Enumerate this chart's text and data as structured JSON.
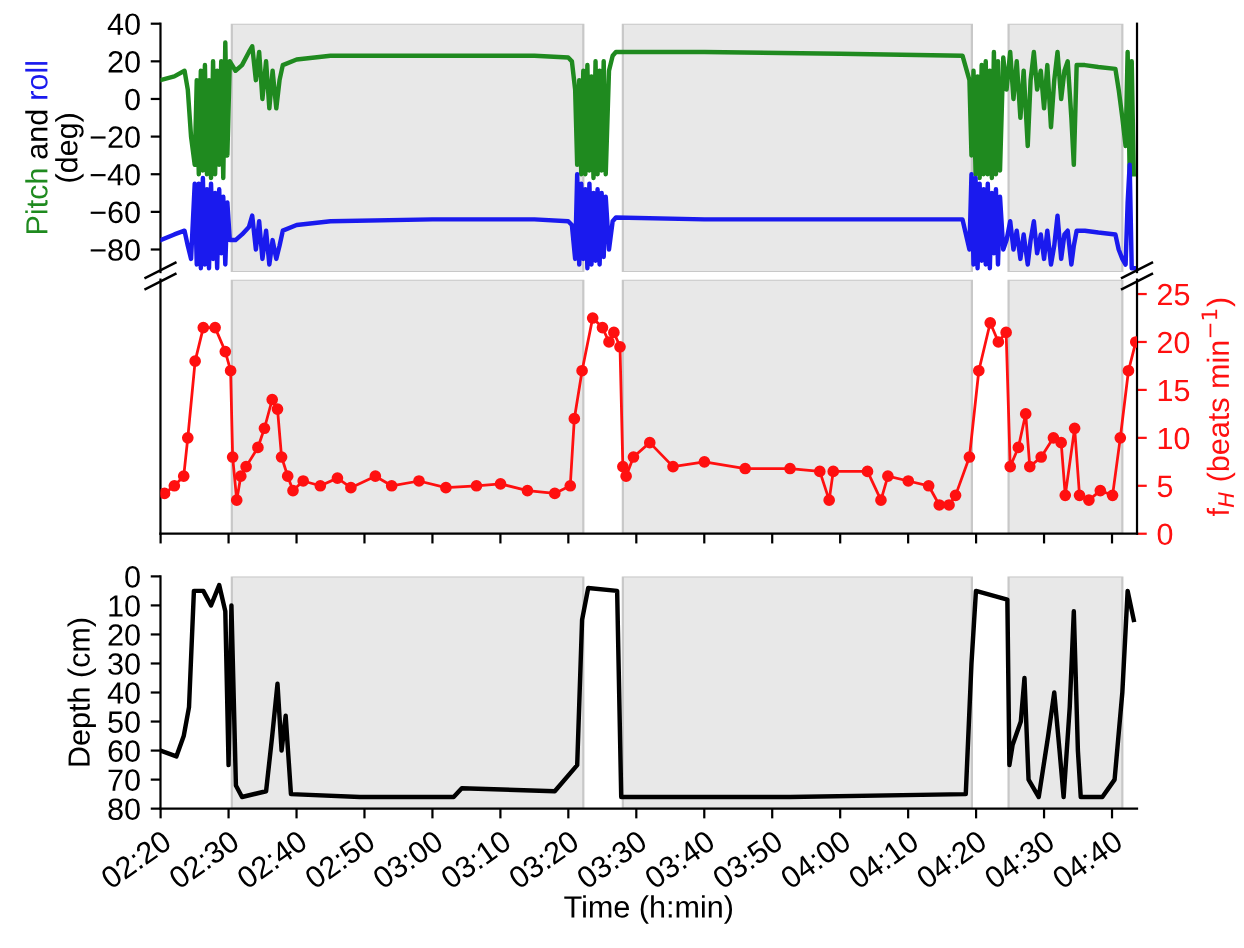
{
  "chart_data": [
    {
      "type": "line",
      "ylabel": "(deg)",
      "annotations": [
        "and"
      ],
      "xlim": [
        2.333,
        4.728
      ],
      "ylim": [
        -92,
        40
      ],
      "yticks": [
        -80,
        -60,
        -40,
        -20,
        0,
        20,
        40
      ],
      "tick_labels": "y",
      "grid": false,
      "legend": false,
      "line_style": "solid",
      "marker": "none",
      "bands": [
        {
          "axis": "x",
          "from": 2.508,
          "to": 3.37,
          "color": "#e8e8e8"
        },
        {
          "axis": "x",
          "from": 3.467,
          "to": 4.323,
          "color": "#e8e8e8"
        },
        {
          "axis": "x",
          "from": 4.413,
          "to": 4.692,
          "color": "#e8e8e8"
        }
      ],
      "x": [
        2.333,
        2.367,
        2.392,
        2.4,
        2.408,
        2.417,
        2.422,
        2.427,
        2.432,
        2.437,
        2.442,
        2.447,
        2.452,
        2.457,
        2.462,
        2.467,
        2.472,
        2.477,
        2.482,
        2.487,
        2.492,
        2.497,
        2.503,
        2.517,
        2.533,
        2.55,
        2.558,
        2.567,
        2.575,
        2.583,
        2.592,
        2.6,
        2.608,
        2.617,
        2.625,
        2.633,
        2.667,
        2.75,
        3.0,
        3.25,
        3.333,
        3.342,
        3.35,
        3.355,
        3.36,
        3.365,
        3.37,
        3.375,
        3.38,
        3.385,
        3.39,
        3.395,
        3.4,
        3.405,
        3.41,
        3.415,
        3.42,
        3.425,
        3.433,
        3.442,
        3.45,
        3.667,
        4.0,
        4.3,
        4.317,
        4.322,
        4.327,
        4.332,
        4.337,
        4.342,
        4.347,
        4.352,
        4.357,
        4.362,
        4.367,
        4.372,
        4.377,
        4.382,
        4.387,
        4.392,
        4.4,
        4.408,
        4.417,
        4.425,
        4.433,
        4.442,
        4.45,
        4.46,
        4.467,
        4.475,
        4.483,
        4.492,
        4.5,
        4.508,
        4.517,
        4.525,
        4.533,
        4.542,
        4.55,
        4.558,
        4.567,
        4.573,
        4.58,
        4.6,
        4.633,
        4.675,
        4.683,
        4.692,
        4.7,
        4.705,
        4.71,
        4.715,
        4.72
      ],
      "series": [
        {
          "name": "Pitch",
          "color": "#1f8a1f",
          "values": [
            10,
            12,
            15,
            5,
            -20,
            -35,
            10,
            -40,
            15,
            -38,
            18,
            -40,
            10,
            -42,
            20,
            -40,
            15,
            -35,
            20,
            -42,
            30,
            -30,
            20,
            15,
            18,
            25,
            28,
            10,
            25,
            0,
            20,
            -5,
            15,
            -5,
            10,
            18,
            21,
            23,
            23,
            23,
            22,
            20,
            5,
            -35,
            10,
            -40,
            15,
            -40,
            18,
            -38,
            12,
            -42,
            20,
            -40,
            15,
            -38,
            20,
            -40,
            15,
            23,
            25,
            25,
            24,
            23,
            10,
            -30,
            15,
            -40,
            12,
            -42,
            18,
            -40,
            20,
            -40,
            15,
            -42,
            25,
            -40,
            20,
            -38,
            22,
            5,
            25,
            0,
            20,
            -10,
            15,
            -25,
            10,
            25,
            5,
            15,
            -5,
            18,
            -15,
            10,
            25,
            0,
            15,
            20,
            -10,
            -35,
            18,
            18,
            17,
            16,
            5,
            -10,
            -25,
            25,
            -40,
            20,
            -40
          ]
        },
        {
          "name": "roll",
          "color": "#1a1aee",
          "values": [
            -75,
            -72,
            -70,
            -78,
            -85,
            -45,
            -88,
            -45,
            -90,
            -42,
            -88,
            -48,
            -90,
            -45,
            -85,
            -50,
            -90,
            -48,
            -82,
            -52,
            -88,
            -55,
            -75,
            -75,
            -72,
            -68,
            -62,
            -80,
            -65,
            -85,
            -70,
            -88,
            -75,
            -85,
            -78,
            -70,
            -67,
            -65,
            -64,
            -64,
            -65,
            -67,
            -85,
            -40,
            -88,
            -45,
            -85,
            -48,
            -90,
            -45,
            -88,
            -50,
            -86,
            -48,
            -88,
            -50,
            -84,
            -52,
            -80,
            -65,
            -63,
            -64,
            -64,
            -64,
            -80,
            -40,
            -88,
            -42,
            -90,
            -45,
            -86,
            -48,
            -88,
            -45,
            -90,
            -50,
            -82,
            -48,
            -88,
            -52,
            -80,
            -75,
            -65,
            -80,
            -70,
            -85,
            -72,
            -88,
            -75,
            -65,
            -82,
            -72,
            -85,
            -70,
            -88,
            -78,
            -62,
            -85,
            -72,
            -70,
            -88,
            -78,
            -70,
            -70,
            -71,
            -72,
            -80,
            -85,
            -88,
            -55,
            -35,
            -90,
            -90
          ]
        }
      ]
    },
    {
      "type": "line",
      "y2label": "f$_{H}$ (beats min$^{−1}$)",
      "xlim": [
        2.333,
        4.728
      ],
      "y2lim": [
        0,
        26.5
      ],
      "y2ticks": [
        0,
        5,
        10,
        15,
        20,
        25
      ],
      "tick_labels": "y",
      "grid": false,
      "legend": false,
      "line_style": "solid",
      "marker": "circle",
      "bands": [
        {
          "axis": "x",
          "from": 2.508,
          "to": 3.37,
          "color": "#e8e8e8"
        },
        {
          "axis": "x",
          "from": 3.467,
          "to": 4.323,
          "color": "#e8e8e8"
        },
        {
          "axis": "x",
          "from": 4.413,
          "to": 4.692,
          "color": "#e8e8e8"
        }
      ],
      "xticks": [
        {
          "value": 2.3333,
          "label": null
        },
        {
          "value": 2.5,
          "label": null
        },
        {
          "value": 2.6667,
          "label": null
        },
        {
          "value": 2.8333,
          "label": null
        },
        {
          "value": 3,
          "label": null
        },
        {
          "value": 3.1667,
          "label": null
        },
        {
          "value": 3.3333,
          "label": null
        },
        {
          "value": 3.5,
          "label": null
        },
        {
          "value": 3.6667,
          "label": null
        },
        {
          "value": 3.8333,
          "label": null
        },
        {
          "value": 4,
          "label": null
        },
        {
          "value": 4.1667,
          "label": null
        },
        {
          "value": 4.3333,
          "label": null
        },
        {
          "value": 4.5,
          "label": null
        },
        {
          "value": 4.6667,
          "label": null
        }
      ],
      "x": [
        2.343,
        2.367,
        2.39,
        2.4,
        2.418,
        2.438,
        2.467,
        2.492,
        2.505,
        2.51,
        2.52,
        2.53,
        2.543,
        2.572,
        2.588,
        2.607,
        2.62,
        2.63,
        2.645,
        2.658,
        2.683,
        2.725,
        2.767,
        2.8,
        2.86,
        2.9,
        2.967,
        3.033,
        3.108,
        3.167,
        3.233,
        3.3,
        3.338,
        3.348,
        3.367,
        3.393,
        3.417,
        3.433,
        3.445,
        3.46,
        3.467,
        3.475,
        3.493,
        3.533,
        3.59,
        3.667,
        3.767,
        3.877,
        3.95,
        3.973,
        3.983,
        4.067,
        4.1,
        4.117,
        4.167,
        4.217,
        4.243,
        4.267,
        4.283,
        4.317,
        4.34,
        4.368,
        4.388,
        4.407,
        4.417,
        4.437,
        4.455,
        4.465,
        4.493,
        4.523,
        4.542,
        4.552,
        4.575,
        4.587,
        4.61,
        4.638,
        4.668,
        4.687,
        4.707,
        4.725
      ],
      "series": [
        {
          "color": "#ff1010",
          "axis": "y2",
          "values": [
            4.2,
            5,
            6,
            10,
            18,
            21.5,
            21.5,
            19,
            17,
            8,
            3.5,
            6,
            7,
            9,
            11,
            14,
            13,
            8,
            6,
            4.5,
            5.5,
            5,
            5.8,
            4.8,
            6,
            5,
            5.5,
            4.8,
            5,
            5.2,
            4.5,
            4.2,
            5,
            12,
            17,
            22.5,
            21.5,
            20,
            21,
            19.5,
            7,
            6,
            8,
            9.5,
            7,
            7.5,
            6.8,
            6.8,
            6.5,
            3.5,
            6.5,
            6.5,
            3.5,
            6,
            5.5,
            5,
            3,
            3,
            4,
            8,
            17,
            22,
            20,
            21,
            7,
            9,
            12.5,
            7,
            8,
            10,
            9.5,
            4,
            11,
            4,
            3.5,
            4.5,
            4,
            10,
            17,
            20
          ]
        }
      ]
    },
    {
      "type": "line",
      "xlabel": "Time (h:min)",
      "ylabel": "Depth (cm)",
      "xlim": [
        2.333,
        4.728
      ],
      "ylim": [
        80,
        0
      ],
      "yticks": [
        0,
        10,
        20,
        30,
        40,
        50,
        60,
        70,
        80
      ],
      "grid": false,
      "legend": false,
      "line_style": "solid",
      "marker": "none",
      "bands": [
        {
          "axis": "x",
          "from": 2.508,
          "to": 3.37,
          "color": "#e8e8e8"
        },
        {
          "axis": "x",
          "from": 3.467,
          "to": 4.323,
          "color": "#e8e8e8"
        },
        {
          "axis": "x",
          "from": 4.413,
          "to": 4.692,
          "color": "#e8e8e8"
        }
      ],
      "xticks": [
        {
          "value": 2.3333,
          "label": "02:20"
        },
        {
          "value": 2.5,
          "label": "02:30"
        },
        {
          "value": 2.6667,
          "label": "02:40"
        },
        {
          "value": 2.8333,
          "label": "02:50"
        },
        {
          "value": 3,
          "label": "03:00"
        },
        {
          "value": 3.1667,
          "label": "03:10"
        },
        {
          "value": 3.3333,
          "label": "03:20"
        },
        {
          "value": 3.5,
          "label": "03:30"
        },
        {
          "value": 3.6667,
          "label": "03:40"
        },
        {
          "value": 3.8333,
          "label": "03:50"
        },
        {
          "value": 4,
          "label": "04:00"
        },
        {
          "value": 4.1667,
          "label": "04:10"
        },
        {
          "value": 4.3333,
          "label": "04:20"
        },
        {
          "value": 4.5,
          "label": "04:30"
        },
        {
          "value": 4.6667,
          "label": "04:40"
        }
      ],
      "x": [
        2.333,
        2.372,
        2.39,
        2.403,
        2.415,
        2.438,
        2.457,
        2.477,
        2.492,
        2.5,
        2.507,
        2.518,
        2.533,
        2.592,
        2.607,
        2.62,
        2.63,
        2.64,
        2.653,
        2.822,
        3.052,
        3.072,
        3.3,
        3.355,
        3.367,
        3.382,
        3.453,
        3.463,
        3.877,
        4.308,
        4.322,
        4.333,
        4.41,
        4.415,
        4.423,
        4.443,
        4.452,
        4.462,
        4.487,
        4.51,
        4.525,
        4.538,
        4.548,
        4.563,
        4.573,
        4.583,
        4.59,
        4.643,
        4.673,
        4.692,
        4.705,
        4.72
      ],
      "series": [
        {
          "color": "#000000",
          "values": [
            60,
            62,
            55,
            45,
            5,
            5,
            10,
            3,
            12,
            65,
            10,
            72,
            76,
            74,
            55,
            37,
            60,
            48,
            75,
            76,
            76,
            73,
            74,
            65,
            15,
            4,
            5,
            76,
            76,
            75,
            30,
            5,
            8,
            65,
            58,
            50,
            35,
            70,
            76,
            55,
            40,
            60,
            76,
            45,
            12,
            60,
            76,
            76,
            70,
            40,
            5,
            15
          ]
        }
      ]
    }
  ]
}
